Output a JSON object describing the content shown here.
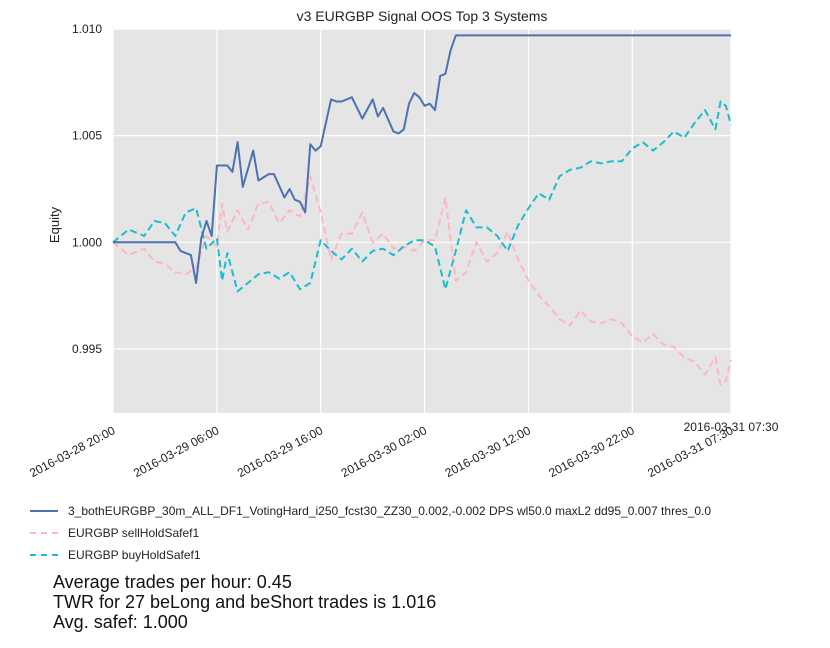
{
  "chart_data": {
    "type": "line",
    "title": "v3 EURGBP Signal OOS Top 3 Systems",
    "ylabel": "Equity",
    "xlabel": "",
    "ylim": [
      0.992,
      1.01
    ],
    "yticks": [
      "0.995",
      "1.000",
      "1.005",
      "1.010"
    ],
    "yticks_values": [
      0.995,
      1.0,
      1.005,
      1.01
    ],
    "xlim": [
      "2016-03-28 20:00",
      "2016-03-31 07:30"
    ],
    "xticks": [
      "2016-03-28 20:00",
      "2016-03-29 06:00",
      "2016-03-29 16:00",
      "2016-03-30 02:00",
      "2016-03-30 12:00",
      "2016-03-30 22:00",
      "2016-03-31 07:30"
    ],
    "xtick_end_label": "2016-03-31 07:30",
    "grid": true,
    "background": "#e5e5e5",
    "legend_location": "below",
    "series": [
      {
        "name": "3_bothEURGBP_30m_ALL_DF1_VotingHard_i250_fcst30_ZZ30_0.002,-0.002 DPS wl50.0 maxL2 dd95_0.007 thres_0.0",
        "color": "#4c72b0",
        "style": "solid",
        "x": [
          "2016-03-28 20:00",
          "2016-03-29 02:00",
          "2016-03-29 02:30",
          "2016-03-29 03:30",
          "2016-03-29 04:00",
          "2016-03-29 04:30",
          "2016-03-29 05:00",
          "2016-03-29 05:30",
          "2016-03-29 06:00",
          "2016-03-29 07:00",
          "2016-03-29 07:30",
          "2016-03-29 08:00",
          "2016-03-29 08:30",
          "2016-03-29 09:30",
          "2016-03-29 10:00",
          "2016-03-29 11:00",
          "2016-03-29 11:30",
          "2016-03-29 12:30",
          "2016-03-29 13:00",
          "2016-03-29 13:30",
          "2016-03-29 14:00",
          "2016-03-29 14:30",
          "2016-03-29 15:00",
          "2016-03-29 15:30",
          "2016-03-29 16:00",
          "2016-03-29 17:00",
          "2016-03-29 17:30",
          "2016-03-29 18:00",
          "2016-03-29 19:00",
          "2016-03-29 20:00",
          "2016-03-29 21:00",
          "2016-03-29 21:30",
          "2016-03-29 22:00",
          "2016-03-29 23:00",
          "2016-03-29 23:30",
          "2016-03-30 00:00",
          "2016-03-30 00:30",
          "2016-03-30 01:00",
          "2016-03-30 01:30",
          "2016-03-30 02:00",
          "2016-03-30 02:30",
          "2016-03-30 03:00",
          "2016-03-30 03:30",
          "2016-03-30 04:00",
          "2016-03-30 04:30",
          "2016-03-30 05:00",
          "2016-03-30 06:00",
          "2016-03-31 07:30"
        ],
        "y": [
          1.0,
          1.0,
          0.9996,
          0.9994,
          0.9981,
          1.0002,
          1.001,
          1.0003,
          1.0036,
          1.0036,
          1.0033,
          1.0047,
          1.0026,
          1.0043,
          1.0029,
          1.0032,
          1.0032,
          1.0021,
          1.0025,
          1.002,
          1.0019,
          1.0014,
          1.0046,
          1.0043,
          1.0045,
          1.0067,
          1.0066,
          1.0066,
          1.0068,
          1.0058,
          1.0067,
          1.0059,
          1.0063,
          1.0052,
          1.0051,
          1.0053,
          1.0065,
          1.007,
          1.0068,
          1.0064,
          1.0065,
          1.0062,
          1.0078,
          1.0079,
          1.009,
          1.0097,
          1.0097,
          1.0097
        ]
      },
      {
        "name": "EURGBP sellHoldSafef1",
        "color": "#ffb6c1",
        "style": "dashed",
        "x": [
          "2016-03-28 20:00",
          "2016-03-28 21:30",
          "2016-03-28 23:00",
          "2016-03-29 00:00",
          "2016-03-29 01:00",
          "2016-03-29 02:00",
          "2016-03-29 03:00",
          "2016-03-29 04:00",
          "2016-03-29 05:00",
          "2016-03-29 06:00",
          "2016-03-29 06:30",
          "2016-03-29 07:00",
          "2016-03-29 08:00",
          "2016-03-29 09:00",
          "2016-03-29 10:00",
          "2016-03-29 11:00",
          "2016-03-29 12:00",
          "2016-03-29 13:00",
          "2016-03-29 14:00",
          "2016-03-29 15:00",
          "2016-03-29 16:00",
          "2016-03-29 17:00",
          "2016-03-29 18:00",
          "2016-03-29 19:00",
          "2016-03-29 20:00",
          "2016-03-29 21:00",
          "2016-03-29 22:00",
          "2016-03-29 23:00",
          "2016-03-30 00:00",
          "2016-03-30 01:00",
          "2016-03-30 02:00",
          "2016-03-30 03:00",
          "2016-03-30 04:00",
          "2016-03-30 05:00",
          "2016-03-30 06:00",
          "2016-03-30 07:00",
          "2016-03-30 08:00",
          "2016-03-30 09:00",
          "2016-03-30 10:00",
          "2016-03-30 11:00",
          "2016-03-30 12:00",
          "2016-03-30 13:00",
          "2016-03-30 14:00",
          "2016-03-30 15:00",
          "2016-03-30 16:00",
          "2016-03-30 17:00",
          "2016-03-30 18:00",
          "2016-03-30 19:00",
          "2016-03-30 20:00",
          "2016-03-30 21:00",
          "2016-03-30 22:00",
          "2016-03-30 23:00",
          "2016-03-31 00:00",
          "2016-03-31 01:00",
          "2016-03-31 02:00",
          "2016-03-31 03:00",
          "2016-03-31 04:00",
          "2016-03-31 05:00",
          "2016-03-31 06:00",
          "2016-03-31 06:30",
          "2016-03-31 07:00",
          "2016-03-31 07:30"
        ],
        "y": [
          1.0,
          0.9994,
          0.9997,
          0.9991,
          0.999,
          0.9986,
          0.9985,
          0.9988,
          1.0003,
          0.9998,
          1.0018,
          1.0005,
          1.0015,
          1.0006,
          1.0018,
          1.0019,
          1.0009,
          1.0015,
          1.0012,
          1.0031,
          1.0014,
          0.9992,
          1.0004,
          1.0004,
          1.0014,
          1.0,
          1.0004,
          0.9997,
          0.9998,
          0.9996,
          1.0001,
          1.0001,
          1.0021,
          0.9982,
          0.9986,
          1.0,
          0.9991,
          0.9995,
          1.0005,
          0.9992,
          0.9982,
          0.9975,
          0.997,
          0.9964,
          0.9961,
          0.9968,
          0.9963,
          0.9962,
          0.9964,
          0.9962,
          0.9956,
          0.9953,
          0.9957,
          0.9952,
          0.9951,
          0.9946,
          0.9944,
          0.9938,
          0.9946,
          0.9933,
          0.9935,
          0.9945
        ]
      },
      {
        "name": "EURGBP buyHoldSafef1",
        "color": "#17becf",
        "style": "dashed",
        "x": [
          "2016-03-28 20:00",
          "2016-03-28 21:30",
          "2016-03-28 23:00",
          "2016-03-29 00:00",
          "2016-03-29 01:00",
          "2016-03-29 02:00",
          "2016-03-29 03:00",
          "2016-03-29 04:00",
          "2016-03-29 05:00",
          "2016-03-29 06:00",
          "2016-03-29 06:30",
          "2016-03-29 07:00",
          "2016-03-29 08:00",
          "2016-03-29 09:00",
          "2016-03-29 10:00",
          "2016-03-29 11:00",
          "2016-03-29 12:00",
          "2016-03-29 13:00",
          "2016-03-29 14:00",
          "2016-03-29 15:00",
          "2016-03-29 16:00",
          "2016-03-29 17:00",
          "2016-03-29 18:00",
          "2016-03-29 19:00",
          "2016-03-29 20:00",
          "2016-03-29 21:00",
          "2016-03-29 22:00",
          "2016-03-29 23:00",
          "2016-03-30 00:00",
          "2016-03-30 01:00",
          "2016-03-30 02:00",
          "2016-03-30 03:00",
          "2016-03-30 04:00",
          "2016-03-30 05:00",
          "2016-03-30 06:00",
          "2016-03-30 07:00",
          "2016-03-30 08:00",
          "2016-03-30 09:00",
          "2016-03-30 10:00",
          "2016-03-30 11:00",
          "2016-03-30 12:00",
          "2016-03-30 13:00",
          "2016-03-30 14:00",
          "2016-03-30 15:00",
          "2016-03-30 16:00",
          "2016-03-30 17:00",
          "2016-03-30 18:00",
          "2016-03-30 19:00",
          "2016-03-30 20:00",
          "2016-03-30 21:00",
          "2016-03-30 22:00",
          "2016-03-30 23:00",
          "2016-03-31 00:00",
          "2016-03-31 01:00",
          "2016-03-31 02:00",
          "2016-03-31 03:00",
          "2016-03-31 04:00",
          "2016-03-31 05:00",
          "2016-03-31 06:00",
          "2016-03-31 06:30",
          "2016-03-31 07:00",
          "2016-03-31 07:30"
        ],
        "y": [
          1.0,
          1.0006,
          1.0003,
          1.001,
          1.0009,
          1.0003,
          1.0014,
          1.0016,
          0.9997,
          1.0002,
          0.9982,
          0.9995,
          0.9977,
          0.9981,
          0.9985,
          0.9986,
          0.9983,
          0.9986,
          0.9978,
          0.9981,
          1.0001,
          0.9996,
          0.9992,
          0.9997,
          0.9991,
          0.9996,
          0.9997,
          0.9994,
          0.9998,
          1.0001,
          1.0001,
          0.9998,
          0.9978,
          0.9996,
          1.0015,
          1.0007,
          1.0007,
          1.0003,
          0.9996,
          1.0008,
          1.0016,
          1.0023,
          1.002,
          1.0031,
          1.0034,
          1.0035,
          1.0038,
          1.0037,
          1.0038,
          1.0038,
          1.0044,
          1.0047,
          1.0043,
          1.0047,
          1.0052,
          1.0049,
          1.0056,
          1.0062,
          1.0053,
          1.0066,
          1.0064,
          1.0055
        ]
      }
    ]
  },
  "stats": {
    "line1": "Average trades per hour: 0.45",
    "line2": "TWR for 27 beLong and beShort trades is 1.016",
    "line3": "Avg. safef: 1.000"
  }
}
